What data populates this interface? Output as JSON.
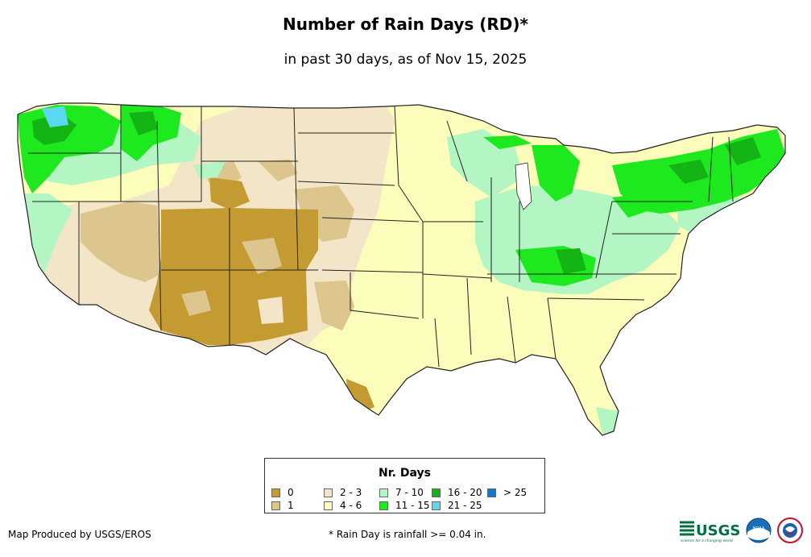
{
  "title": "Number of Rain Days (RD)*",
  "subtitle": "in past 30 days, as of Nov 15, 2025",
  "legend": {
    "title": "Nr. Days",
    "items": [
      {
        "label": "0",
        "color": "#c49a32"
      },
      {
        "label": "1",
        "color": "#dcc68e"
      },
      {
        "label": "2 - 3",
        "color": "#f3e5c8"
      },
      {
        "label": "4 - 6",
        "color": "#fcfcbb"
      },
      {
        "label": "7 - 10",
        "color": "#b3f5c3"
      },
      {
        "label": "11 - 15",
        "color": "#1ee81e"
      },
      {
        "label": "16 - 20",
        "color": "#14b414"
      },
      {
        "label": "21 - 25",
        "color": "#5ad8f0"
      },
      {
        "label": "> 25",
        "color": "#1478c8"
      }
    ]
  },
  "credit": "Map Produced by USGS/EROS",
  "footnote": "* Rain Day is rainfall >= 0.04 in.",
  "logos": {
    "usgs_text": "USGS",
    "usgs_tagline": "science for a changing world",
    "noaa_text": "NOAA"
  }
}
